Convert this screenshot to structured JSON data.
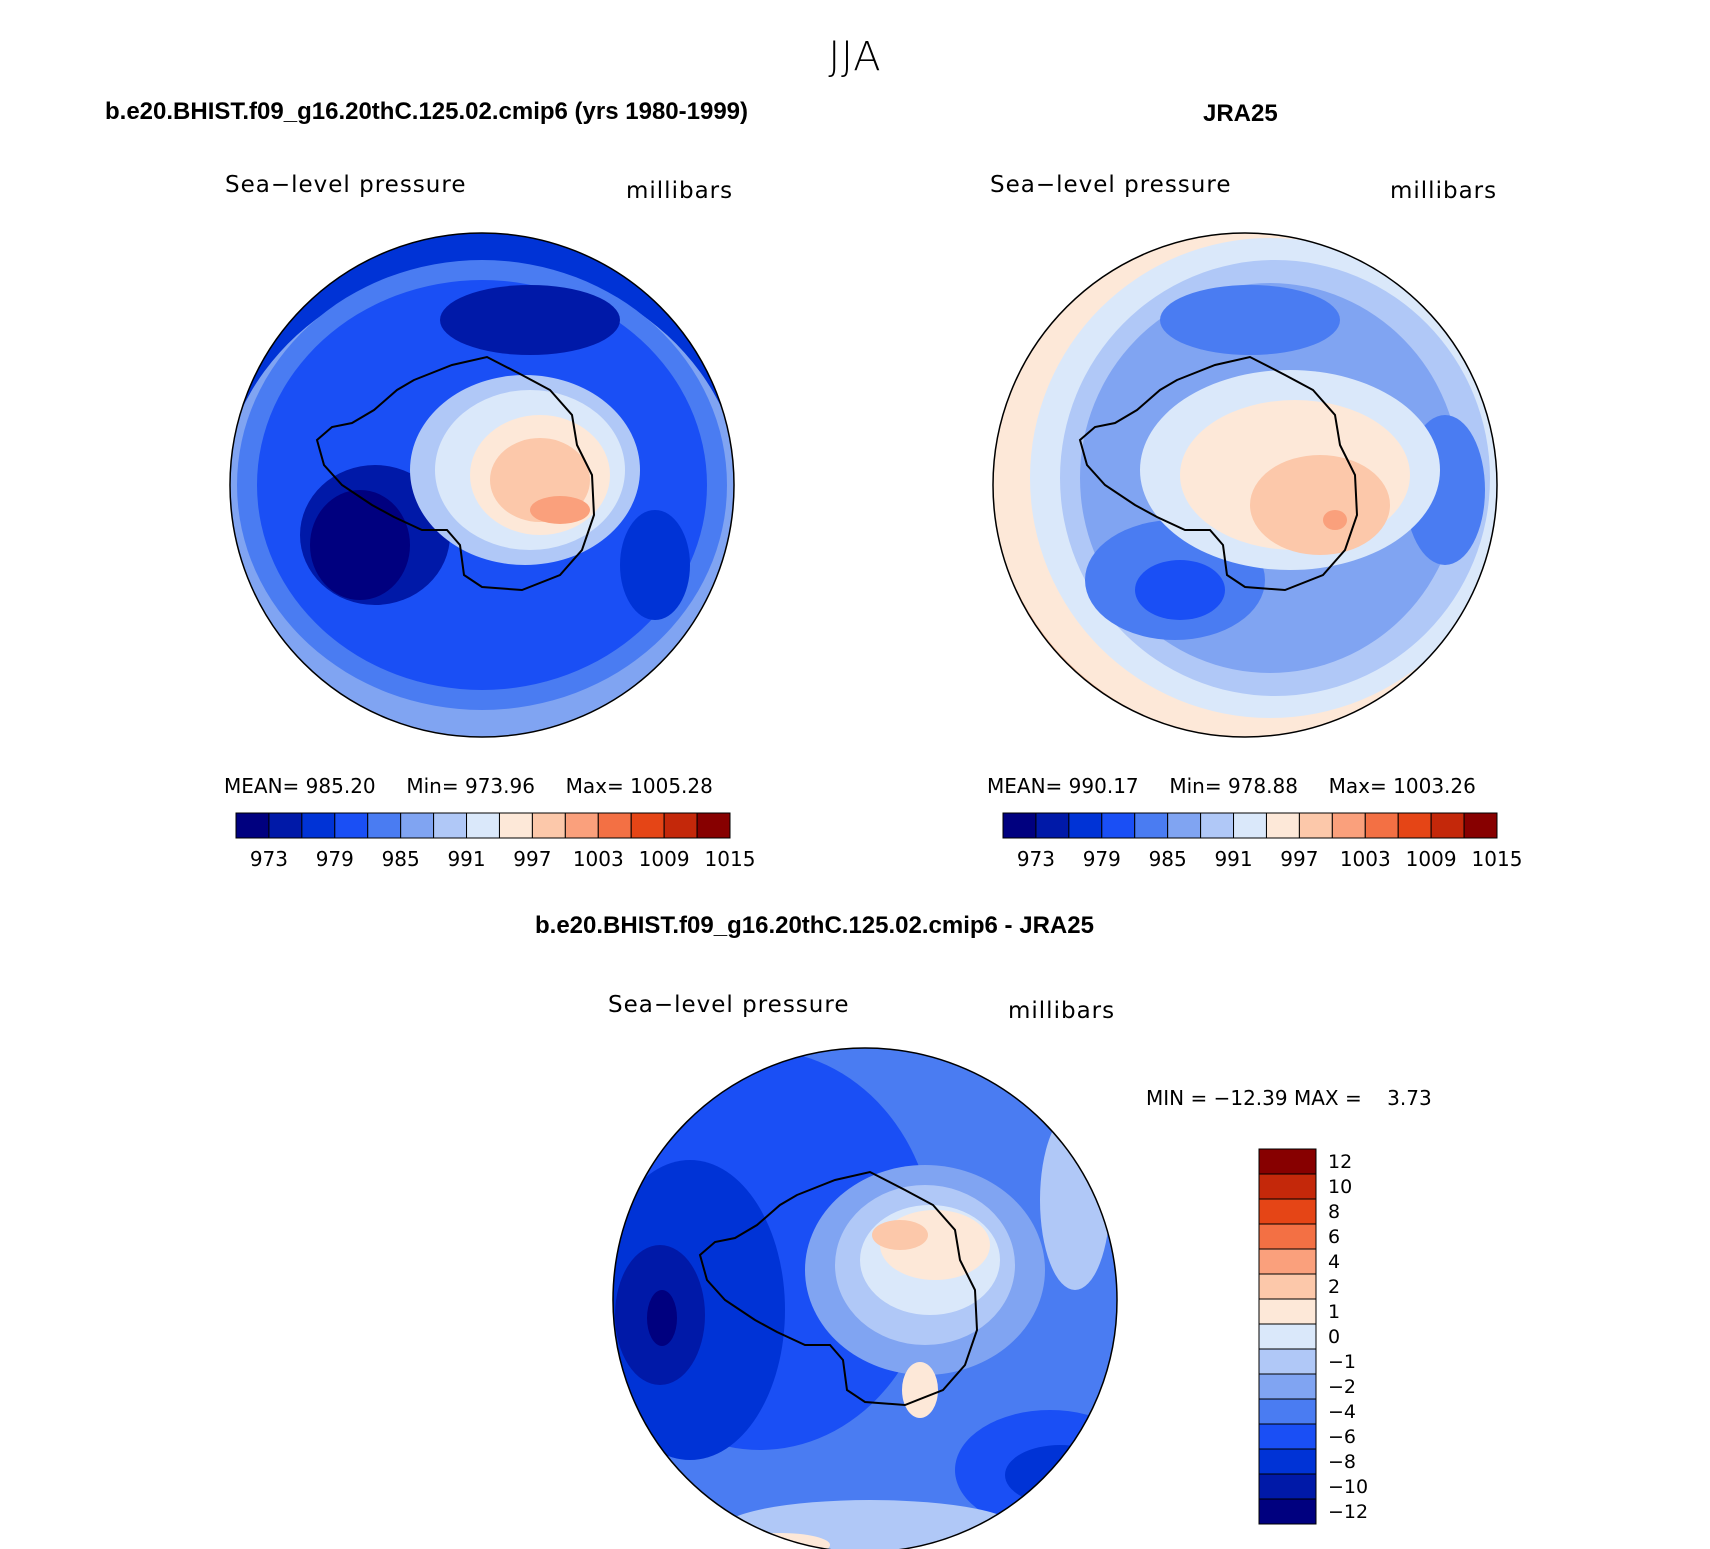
{
  "page": {
    "title": "JJA"
  },
  "panels": [
    {
      "id": "model",
      "heading": "b.e20.BHIST.f09_g16.20thC.125.02.cmip6 (yrs 1980-1999)",
      "variable": "Sea−level pressure",
      "units": "millibars",
      "stats": {
        "mean_label": "MEAN=",
        "mean": "985.20",
        "min_label": "Min=",
        "min": "973.96",
        "max_label": "Max=",
        "max": "1005.28"
      }
    },
    {
      "id": "obs",
      "heading": "JRA25",
      "variable": "Sea−level pressure",
      "units": "millibars",
      "stats": {
        "mean_label": "MEAN=",
        "mean": "990.17",
        "min_label": "Min=",
        "min": "978.88",
        "max_label": "Max=",
        "max": "1003.26"
      }
    }
  ],
  "difference": {
    "heading": "b.e20.BHIST.f09_g16.20thC.125.02.cmip6 - JRA25",
    "variable": "Sea−level pressure",
    "units": "millibars",
    "stats_text": "MIN = −12.39 MAX =    3.73"
  },
  "colors": {
    "slp_palette": [
      "#00007f",
      "#0019a8",
      "#0033d6",
      "#1a4ff5",
      "#4a7cf2",
      "#80a4f2",
      "#b0c8f7",
      "#dae8fa",
      "#fde8d8",
      "#fcc8aa",
      "#faa07c",
      "#f37044",
      "#e54516",
      "#c4280a",
      "#870000"
    ],
    "diff_palette": [
      "#00007f",
      "#0019a8",
      "#0033d6",
      "#1a4ff5",
      "#4a7cf2",
      "#80a4f2",
      "#b0c8f7",
      "#dae8fa",
      "#fde8d8",
      "#fcc8aa",
      "#faa07c",
      "#f37044",
      "#e54516",
      "#c4280a",
      "#870000"
    ],
    "coastline": "#000000"
  },
  "chart_data": [
    {
      "type": "contour-map",
      "title": "b.e20.BHIST.f09_g16.20thC.125.02.cmip6 (yrs 1980-1999)",
      "variable": "Sea−level pressure",
      "units": "millibars",
      "projection": "south-polar stereographic",
      "colorbar_levels": [
        973,
        976,
        979,
        982,
        985,
        988,
        991,
        994,
        997,
        1000,
        1003,
        1006,
        1009,
        1012,
        1015
      ],
      "colorbar_tick_labels": [
        "973",
        "979",
        "985",
        "991",
        "997",
        "1003",
        "1009",
        "1015"
      ],
      "colorbar_orientation": "horizontal",
      "mean": 985.2,
      "min": 973.96,
      "max": 1005.28
    },
    {
      "type": "contour-map",
      "title": "JRA25",
      "variable": "Sea−level pressure",
      "units": "millibars",
      "projection": "south-polar stereographic",
      "colorbar_levels": [
        973,
        976,
        979,
        982,
        985,
        988,
        991,
        994,
        997,
        1000,
        1003,
        1006,
        1009,
        1012,
        1015
      ],
      "colorbar_tick_labels": [
        "973",
        "979",
        "985",
        "991",
        "997",
        "1003",
        "1009",
        "1015"
      ],
      "colorbar_orientation": "horizontal",
      "mean": 990.17,
      "min": 978.88,
      "max": 1003.26
    },
    {
      "type": "contour-map",
      "title": "b.e20.BHIST.f09_g16.20thC.125.02.cmip6 - JRA25",
      "variable": "Sea−level pressure",
      "units": "millibars",
      "projection": "south-polar stereographic",
      "colorbar_tick_labels": [
        "12",
        "10",
        "8",
        "6",
        "4",
        "2",
        "1",
        "0",
        "−1",
        "−2",
        "−4",
        "−6",
        "−8",
        "−10",
        "−12"
      ],
      "colorbar_orientation": "vertical",
      "min": -12.39,
      "max": 3.73
    }
  ]
}
